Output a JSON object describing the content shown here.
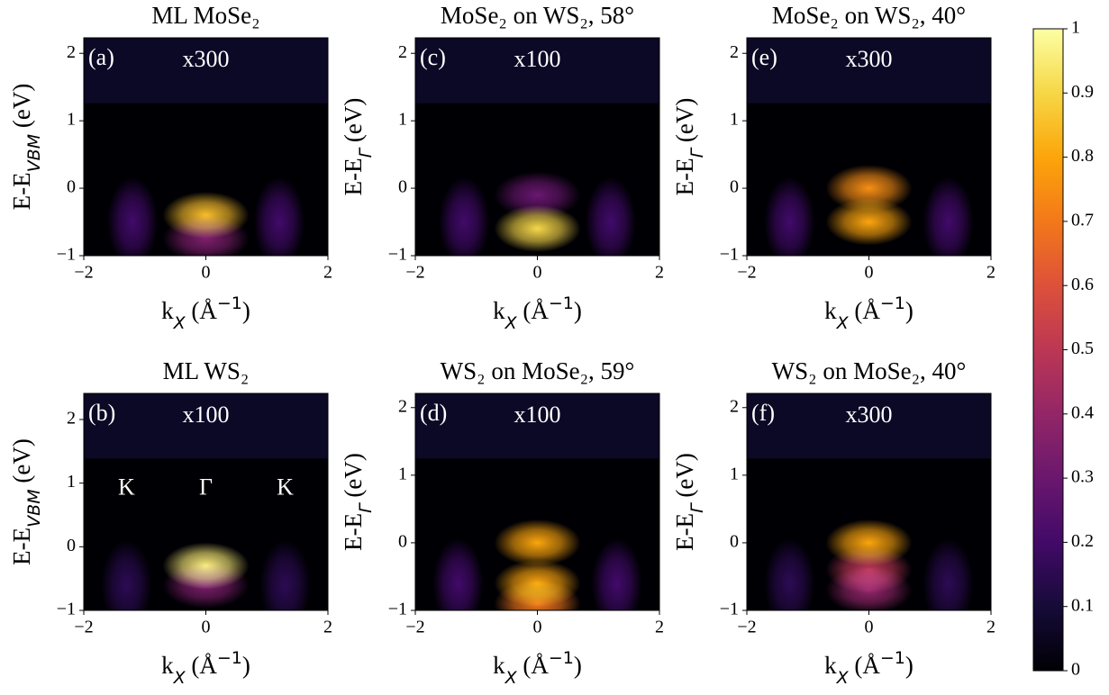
{
  "chart_data": [
    {
      "type": "heatmap",
      "title": "ML MoSe₂",
      "label": "(a)",
      "annotation": "x300",
      "xlabel": [
        "k",
        "X",
        " (Å",
        "−1",
        ")"
      ],
      "ylabel": [
        "E-E",
        "VBM",
        " (eV)"
      ],
      "xlim": [
        -2,
        2
      ],
      "xticks": [
        {
          "value": -2,
          "label": "−2"
        },
        0,
        2
      ],
      "ylim": [
        -1,
        2.23
      ],
      "yticks": [
        {
          "value": -1,
          "label": "−1"
        },
        0,
        1,
        2
      ],
      "peaks": [
        {
          "x": 0,
          "y": -0.4,
          "intensity": 0.85
        },
        {
          "x": 0,
          "y": -0.75,
          "intensity": 0.35
        },
        {
          "x": -1.2,
          "y": -0.5,
          "intensity": 0.2
        },
        {
          "x": 1.2,
          "y": -0.5,
          "intensity": 0.2
        }
      ]
    },
    {
      "type": "heatmap",
      "title": "ML WS₂",
      "label": "(b)",
      "annotation": "x100",
      "xlabel": [
        "k",
        "X",
        " (Å",
        "−1",
        ")"
      ],
      "ylabel": [
        "E-E",
        "VBM",
        " (eV)"
      ],
      "xlim": [
        -2,
        2
      ],
      "xticks": [
        {
          "value": -2,
          "label": "−2"
        },
        0,
        2
      ],
      "ylim": [
        -1,
        2.41
      ],
      "yticks": [
        {
          "value": -1,
          "label": "−1"
        },
        0,
        1,
        2
      ],
      "point_labels": [
        {
          "text": "K",
          "x": -1.3,
          "y": 0.9
        },
        {
          "text": "Γ",
          "x": 0,
          "y": 0.9
        },
        {
          "text": "K",
          "x": 1.3,
          "y": 0.9
        }
      ],
      "peaks": [
        {
          "x": 0,
          "y": -0.3,
          "intensity": 0.95
        },
        {
          "x": 0,
          "y": -0.6,
          "intensity": 0.35
        },
        {
          "x": -1.3,
          "y": -0.6,
          "intensity": 0.15
        },
        {
          "x": 1.3,
          "y": -0.6,
          "intensity": 0.15
        }
      ]
    },
    {
      "type": "heatmap",
      "title": "MoSe₂ on WS₂, 58°",
      "label": "(c)",
      "annotation": "x100",
      "xlabel": [
        "k",
        "X",
        " (Å",
        "−1",
        ")"
      ],
      "ylabel": [
        "E-E",
        "Γ",
        " (eV)"
      ],
      "xlim": [
        -2,
        2
      ],
      "xticks": [
        {
          "value": -2,
          "label": "−2"
        },
        0,
        2
      ],
      "ylim": [
        -1,
        2.23
      ],
      "yticks": [
        {
          "value": -1,
          "label": "−1"
        },
        0,
        1,
        2
      ],
      "peaks": [
        {
          "x": 0,
          "y": -0.6,
          "intensity": 0.9
        },
        {
          "x": 0,
          "y": -0.1,
          "intensity": 0.3
        },
        {
          "x": -1.2,
          "y": -0.5,
          "intensity": 0.2
        },
        {
          "x": 1.2,
          "y": -0.5,
          "intensity": 0.2
        }
      ]
    },
    {
      "type": "heatmap",
      "title": "WS₂ on MoSe₂, 59°",
      "label": "(d)",
      "annotation": "x100",
      "xlabel": [
        "k",
        "X",
        " (Å",
        "−1",
        ")"
      ],
      "ylabel": [
        "E-E",
        "Γ",
        " (eV)"
      ],
      "xlim": [
        -2,
        2
      ],
      "xticks": [
        {
          "value": -2,
          "label": "−2"
        },
        0,
        2
      ],
      "ylim": [
        -1,
        2.21
      ],
      "yticks": [
        {
          "value": -1,
          "label": "−1"
        },
        0,
        1,
        2
      ],
      "peaks": [
        {
          "x": 0,
          "y": 0,
          "intensity": 0.8
        },
        {
          "x": 0,
          "y": -0.6,
          "intensity": 0.8
        },
        {
          "x": 0,
          "y": -0.9,
          "intensity": 0.7
        },
        {
          "x": -1.3,
          "y": -0.6,
          "intensity": 0.2
        },
        {
          "x": 1.3,
          "y": -0.6,
          "intensity": 0.2
        }
      ]
    },
    {
      "type": "heatmap",
      "title": "MoSe₂ on WS₂, 40°",
      "label": "(e)",
      "annotation": "x300",
      "xlabel": [
        "k",
        "X",
        " (Å",
        "−1",
        ")"
      ],
      "ylabel": [
        "E-E",
        "Γ",
        " (eV)"
      ],
      "xlim": [
        -2,
        2
      ],
      "xticks": [
        {
          "value": -2,
          "label": "−2"
        },
        0,
        2
      ],
      "ylim": [
        -1,
        2.23
      ],
      "yticks": [
        {
          "value": -1,
          "label": "−1"
        },
        0,
        1,
        2
      ],
      "peaks": [
        {
          "x": 0,
          "y": 0,
          "intensity": 0.75
        },
        {
          "x": 0,
          "y": -0.5,
          "intensity": 0.8
        },
        {
          "x": -1.3,
          "y": -0.5,
          "intensity": 0.2
        },
        {
          "x": 1.3,
          "y": -0.5,
          "intensity": 0.2
        }
      ]
    },
    {
      "type": "heatmap",
      "title": "WS₂ on MoSe₂, 40°",
      "label": "(f)",
      "annotation": "x300",
      "xlabel": [
        "k",
        "X",
        " (Å",
        "−1",
        ")"
      ],
      "ylabel": [
        "E-E",
        "Γ",
        " (eV)"
      ],
      "xlim": [
        -2,
        2
      ],
      "xticks": [
        {
          "value": -2,
          "label": "−2"
        },
        0,
        2
      ],
      "ylim": [
        -1,
        2.21
      ],
      "yticks": [
        {
          "value": -1,
          "label": "−1"
        },
        0,
        1,
        2
      ],
      "peaks": [
        {
          "x": 0,
          "y": 0,
          "intensity": 0.8
        },
        {
          "x": 0,
          "y": -0.4,
          "intensity": 0.5
        },
        {
          "x": 0,
          "y": -0.7,
          "intensity": 0.4
        },
        {
          "x": -1.3,
          "y": -0.6,
          "intensity": 0.15
        },
        {
          "x": 1.3,
          "y": -0.6,
          "intensity": 0.15
        }
      ]
    },
    {
      "type": "colorbar",
      "ylim": [
        0,
        1
      ],
      "yticks": [
        0,
        0.1,
        0.2,
        0.3,
        0.4,
        0.5,
        0.6,
        0.7,
        0.8,
        0.9,
        1
      ]
    }
  ]
}
